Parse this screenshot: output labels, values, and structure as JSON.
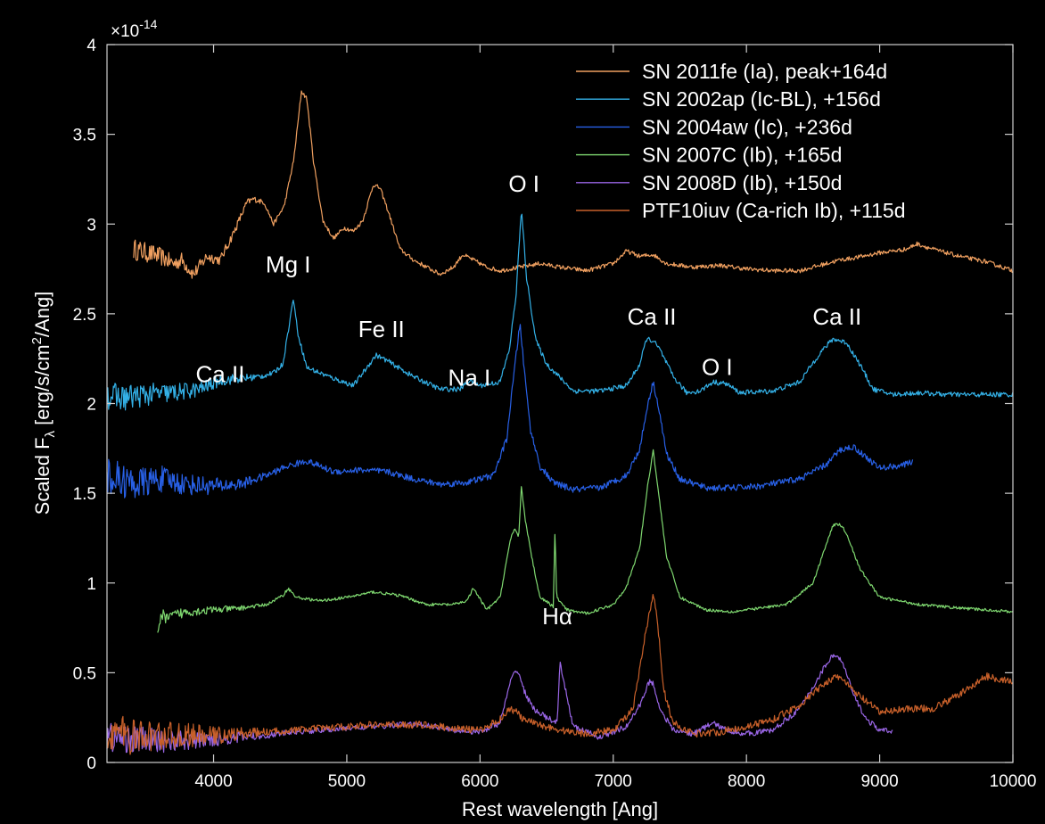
{
  "chart_data": {
    "type": "line",
    "title": "",
    "xlabel": "Rest wavelength [Ang]",
    "ylabel_main": "Scaled F",
    "ylabel_sub": "λ",
    "ylabel_tail": " [erg/s/cm",
    "ylabel_sup": "2",
    "ylabel_end": "/Ang]",
    "y_exponent_prefix": "×10",
    "y_exponent": "-14",
    "xlim": [
      3200,
      10000
    ],
    "ylim": [
      0,
      4
    ],
    "xticks": [
      4000,
      5000,
      6000,
      7000,
      8000,
      9000,
      10000
    ],
    "xtick_labels": [
      "4000",
      "5000",
      "6000",
      "7000",
      "8000",
      "9000",
      "10000"
    ],
    "yticks": [
      0,
      0.5,
      1,
      1.5,
      2,
      2.5,
      3,
      3.5,
      4
    ],
    "ytick_labels": [
      "0",
      "0.5",
      "1",
      "1.5",
      "2",
      "2.5",
      "3",
      "3.5",
      "4"
    ],
    "legend_position": "top-right",
    "series": [
      {
        "name": "SN 2011fe (Ia), peak+164d",
        "color": "#f0a060",
        "noise": 0.012,
        "x": [
          3400,
          3500,
          3600,
          3700,
          3760,
          3850,
          3950,
          4050,
          4150,
          4250,
          4300,
          4380,
          4450,
          4530,
          4600,
          4660,
          4700,
          4750,
          4820,
          4900,
          4980,
          5050,
          5120,
          5200,
          5250,
          5320,
          5400,
          5500,
          5600,
          5700,
          5800,
          5870,
          5950,
          6050,
          6150,
          6300,
          6450,
          6600,
          6800,
          7000,
          7100,
          7200,
          7300,
          7400,
          7600,
          7800,
          8000,
          8200,
          8400,
          8600,
          8700,
          8800,
          9000,
          9200,
          9280,
          9400,
          9600,
          9800,
          10000
        ],
        "y": [
          2.86,
          2.84,
          2.82,
          2.78,
          2.8,
          2.72,
          2.82,
          2.8,
          2.95,
          3.12,
          3.14,
          3.12,
          3.0,
          3.1,
          3.35,
          3.74,
          3.7,
          3.35,
          3.02,
          2.92,
          2.98,
          2.96,
          3.02,
          3.22,
          3.2,
          3.05,
          2.86,
          2.8,
          2.76,
          2.72,
          2.76,
          2.83,
          2.8,
          2.76,
          2.74,
          2.76,
          2.78,
          2.76,
          2.74,
          2.78,
          2.85,
          2.82,
          2.83,
          2.78,
          2.76,
          2.77,
          2.75,
          2.74,
          2.74,
          2.78,
          2.8,
          2.81,
          2.84,
          2.86,
          2.89,
          2.86,
          2.82,
          2.79,
          2.74
        ]
      },
      {
        "name": "SN 2002ap (Ic-BL), +156d",
        "color": "#33b0e6",
        "noise": 0.014,
        "x": [
          3200,
          3300,
          3500,
          3700,
          3900,
          4050,
          4200,
          4350,
          4450,
          4520,
          4570,
          4600,
          4630,
          4700,
          4900,
          5050,
          5150,
          5220,
          5300,
          5500,
          5700,
          5850,
          5920,
          6000,
          6150,
          6220,
          6270,
          6310,
          6350,
          6420,
          6500,
          6700,
          6900,
          7100,
          7200,
          7250,
          7300,
          7350,
          7450,
          7550,
          7650,
          7750,
          7850,
          7950,
          8200,
          8400,
          8550,
          8650,
          8750,
          8850,
          8950,
          9100,
          9300,
          9500,
          9700,
          9900,
          10000
        ],
        "y": [
          2.05,
          2.03,
          2.05,
          2.06,
          2.08,
          2.13,
          2.14,
          2.15,
          2.17,
          2.22,
          2.45,
          2.59,
          2.4,
          2.2,
          2.14,
          2.1,
          2.2,
          2.27,
          2.24,
          2.15,
          2.08,
          2.08,
          2.13,
          2.1,
          2.12,
          2.3,
          2.6,
          3.08,
          2.7,
          2.35,
          2.22,
          2.07,
          2.07,
          2.1,
          2.22,
          2.36,
          2.35,
          2.3,
          2.15,
          2.06,
          2.07,
          2.12,
          2.11,
          2.06,
          2.07,
          2.12,
          2.28,
          2.36,
          2.34,
          2.22,
          2.08,
          2.05,
          2.06,
          2.05,
          2.05,
          2.05,
          2.05
        ]
      },
      {
        "name": "SN 2004aw (Ic), +236d",
        "color": "#2860e6",
        "noise": 0.018,
        "x": [
          3200,
          3400,
          3600,
          3800,
          4000,
          4200,
          4400,
          4550,
          4700,
          4900,
          5100,
          5300,
          5500,
          5700,
          5900,
          6100,
          6200,
          6260,
          6300,
          6330,
          6380,
          6450,
          6550,
          6700,
          6900,
          7100,
          7200,
          7260,
          7300,
          7340,
          7400,
          7500,
          7700,
          7900,
          8100,
          8400,
          8600,
          8700,
          8800,
          8900,
          9000,
          9200,
          9250
        ],
        "y": [
          1.6,
          1.55,
          1.58,
          1.55,
          1.54,
          1.55,
          1.6,
          1.65,
          1.68,
          1.62,
          1.63,
          1.62,
          1.58,
          1.55,
          1.56,
          1.6,
          1.8,
          2.2,
          2.45,
          2.2,
          1.85,
          1.65,
          1.56,
          1.52,
          1.53,
          1.6,
          1.75,
          2.0,
          2.12,
          1.98,
          1.72,
          1.58,
          1.53,
          1.53,
          1.54,
          1.58,
          1.66,
          1.74,
          1.76,
          1.7,
          1.64,
          1.66,
          1.68
        ]
      },
      {
        "name": "SN 2007C (Ib), +165d",
        "color": "#7fd870",
        "noise": 0.008,
        "x": [
          3580,
          3620,
          3660,
          3700,
          3800,
          4000,
          4200,
          4400,
          4520,
          4560,
          4620,
          4800,
          5000,
          5200,
          5400,
          5600,
          5800,
          5900,
          5950,
          6050,
          6150,
          6230,
          6260,
          6290,
          6310,
          6340,
          6400,
          6450,
          6550,
          6563,
          6575,
          6650,
          6800,
          7000,
          7100,
          7200,
          7260,
          7300,
          7340,
          7400,
          7500,
          7700,
          7900,
          8100,
          8300,
          8500,
          8600,
          8650,
          8700,
          8750,
          8850,
          9000,
          9300,
          9600,
          10000
        ],
        "y": [
          0.75,
          0.82,
          0.8,
          0.82,
          0.84,
          0.85,
          0.86,
          0.88,
          0.93,
          0.97,
          0.92,
          0.9,
          0.92,
          0.95,
          0.93,
          0.88,
          0.88,
          0.9,
          0.97,
          0.85,
          0.92,
          1.25,
          1.3,
          1.25,
          1.54,
          1.35,
          1.1,
          0.92,
          0.87,
          1.3,
          0.92,
          0.85,
          0.83,
          0.88,
          0.98,
          1.2,
          1.55,
          1.74,
          1.5,
          1.15,
          0.92,
          0.85,
          0.84,
          0.86,
          0.88,
          1.0,
          1.22,
          1.32,
          1.33,
          1.28,
          1.08,
          0.92,
          0.88,
          0.86,
          0.84
        ]
      },
      {
        "name": "SN 2008D (Ib), +150d",
        "color": "#9a66e6",
        "noise": 0.016,
        "x": [
          3200,
          3400,
          3600,
          3800,
          4000,
          4200,
          4400,
          4600,
          4800,
          5000,
          5200,
          5400,
          5600,
          5800,
          6000,
          6150,
          6230,
          6270,
          6300,
          6330,
          6400,
          6500,
          6580,
          6600,
          6700,
          6900,
          7100,
          7200,
          7270,
          7300,
          7350,
          7450,
          7600,
          7700,
          7750,
          7850,
          8000,
          8200,
          8400,
          8500,
          8600,
          8650,
          8700,
          8750,
          8800,
          8900,
          9000,
          9100
        ],
        "y": [
          0.14,
          0.13,
          0.12,
          0.12,
          0.13,
          0.14,
          0.15,
          0.17,
          0.18,
          0.19,
          0.2,
          0.21,
          0.21,
          0.18,
          0.17,
          0.22,
          0.45,
          0.52,
          0.48,
          0.4,
          0.3,
          0.25,
          0.22,
          0.55,
          0.2,
          0.14,
          0.2,
          0.32,
          0.45,
          0.44,
          0.3,
          0.18,
          0.16,
          0.2,
          0.22,
          0.18,
          0.16,
          0.18,
          0.3,
          0.42,
          0.55,
          0.6,
          0.58,
          0.5,
          0.38,
          0.24,
          0.18,
          0.17
        ]
      },
      {
        "name": "PTF10iuv (Ca-rich Ib), +115d",
        "color": "#c8602a",
        "noise": 0.02,
        "x": [
          3200,
          3400,
          3600,
          3800,
          4000,
          4200,
          4400,
          4600,
          4800,
          5000,
          5200,
          5400,
          5600,
          5800,
          6000,
          6150,
          6220,
          6280,
          6320,
          6400,
          6600,
          6800,
          7000,
          7150,
          7250,
          7300,
          7330,
          7380,
          7450,
          7600,
          7800,
          8000,
          8200,
          8400,
          8600,
          8700,
          8800,
          9000,
          9200,
          9400,
          9600,
          9800,
          10000
        ],
        "y": [
          0.18,
          0.14,
          0.15,
          0.15,
          0.15,
          0.16,
          0.17,
          0.18,
          0.19,
          0.2,
          0.21,
          0.21,
          0.21,
          0.19,
          0.18,
          0.24,
          0.3,
          0.28,
          0.24,
          0.22,
          0.18,
          0.16,
          0.18,
          0.3,
          0.75,
          0.93,
          0.8,
          0.4,
          0.22,
          0.16,
          0.17,
          0.2,
          0.24,
          0.32,
          0.45,
          0.48,
          0.4,
          0.28,
          0.3,
          0.3,
          0.38,
          0.48,
          0.45
        ]
      }
    ],
    "annotations": [
      {
        "text": "Ca II",
        "x": 4050,
        "y": 2.12
      },
      {
        "text": "Mg I",
        "x": 4560,
        "y": 2.73
      },
      {
        "text": "Fe II",
        "x": 5260,
        "y": 2.37
      },
      {
        "text": "Na I",
        "x": 5920,
        "y": 2.1
      },
      {
        "text": "O I",
        "x": 6330,
        "y": 3.18
      },
      {
        "text": "Ca II",
        "x": 7290,
        "y": 2.44
      },
      {
        "text": "O I",
        "x": 7780,
        "y": 2.16
      },
      {
        "text": "Ca II",
        "x": 8680,
        "y": 2.44
      },
      {
        "text": "Hα",
        "x": 6580,
        "y": 0.77
      }
    ]
  }
}
